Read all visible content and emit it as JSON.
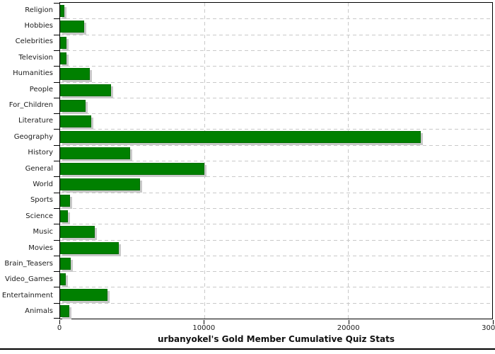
{
  "chart_data": {
    "type": "bar",
    "orientation": "horizontal",
    "title": "urbanyokel's Gold Member Cumulative Quiz Stats",
    "categories": [
      "Religion",
      "Hobbies",
      "Celebrities",
      "Television",
      "Humanities",
      "People",
      "For_Children",
      "Literature",
      "Geography",
      "History",
      "General",
      "World",
      "Sports",
      "Science",
      "Music",
      "Movies",
      "Brain_Teasers",
      "Video_Games",
      "Entertainment",
      "Animals"
    ],
    "values": [
      300,
      1650,
      430,
      430,
      2060,
      3550,
      1760,
      2140,
      25060,
      4860,
      10000,
      5550,
      700,
      540,
      2410,
      4080,
      720,
      410,
      3310,
      650
    ],
    "xlabel": "",
    "ylabel": "",
    "xlim": [
      0,
      30000
    ],
    "x_ticks": [
      0,
      10000,
      20000,
      30000
    ],
    "x_tick_labels": [
      "0",
      "10000",
      "20000",
      "30000"
    ],
    "legend": "none",
    "grid": "dashed",
    "colors": {
      "bar": "#008000",
      "bar_border": "#006e00",
      "bar_shadow": "#c9c9c9",
      "gridline": "#c9c9c9",
      "axis": "#000000",
      "text": "#1c1c1c"
    }
  }
}
